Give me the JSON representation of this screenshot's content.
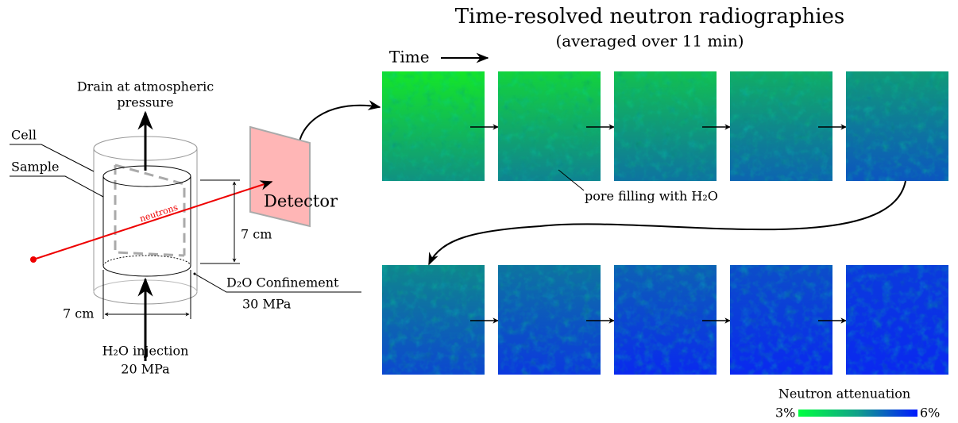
{
  "title": "Time-resolved neutron radiographies",
  "subtitle": "(averaged over 11 min)",
  "time_label": "Time",
  "setup": {
    "drain": [
      "Drain at atmospheric",
      "pressure"
    ],
    "cell": "Cell",
    "sample": "Sample",
    "beam": "neutrons",
    "detector": "Detector",
    "height": "7 cm",
    "diameter": "7 cm",
    "confinement": [
      "D₂O Confinement",
      "30 MPa"
    ],
    "injection": [
      "H₂O injection",
      "20 MPa"
    ]
  },
  "annotation": "pore filling with H₂O",
  "colorbar": {
    "title": "Neutron attenuation",
    "min_label": "3%",
    "max_label": "6%"
  }
}
